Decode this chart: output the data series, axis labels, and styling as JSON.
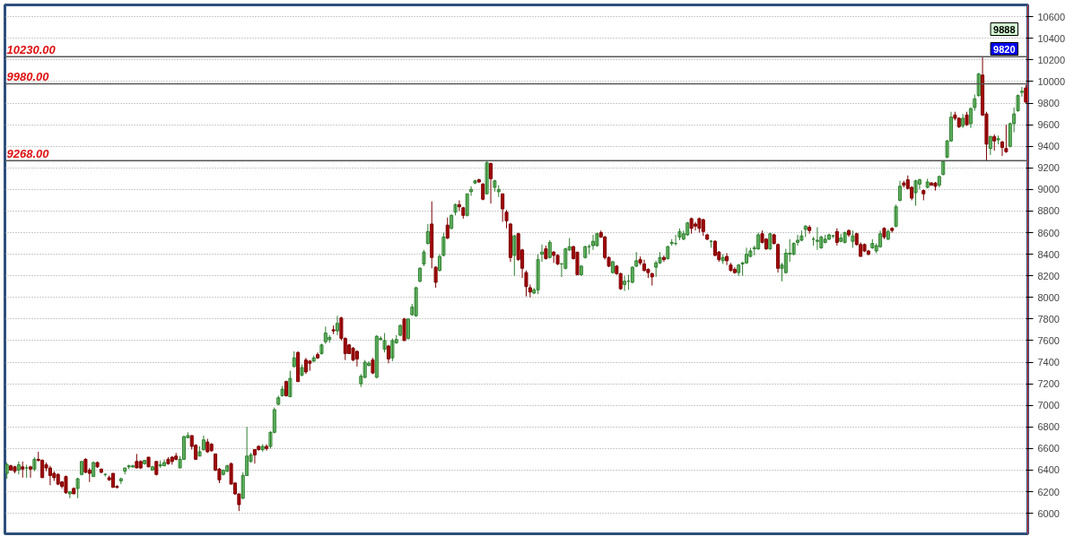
{
  "chart_data": {
    "type": "candlestick",
    "categories": [
      null,
      null,
      null,
      null,
      null,
      null,
      null,
      null,
      null,
      null,
      null,
      null,
      null,
      null,
      null,
      null,
      null,
      null,
      null,
      null,
      null,
      null,
      null,
      null,
      null,
      null,
      null,
      null,
      null,
      null,
      null,
      null,
      null,
      null,
      null,
      null,
      null,
      null,
      null,
      null,
      null,
      null,
      null,
      null,
      null,
      null,
      null,
      null,
      null,
      null,
      null,
      null,
      null,
      null,
      null,
      null,
      null,
      null,
      null,
      null,
      null,
      null,
      null,
      null,
      null,
      null,
      null,
      null,
      null,
      null,
      null,
      null,
      null,
      null,
      null,
      null,
      null,
      null,
      null,
      null,
      null,
      null,
      null,
      null,
      null,
      null,
      null,
      null,
      null,
      null,
      null,
      null,
      null,
      null,
      null,
      null,
      null,
      null,
      null,
      null,
      null,
      null,
      null,
      null,
      null,
      null,
      null,
      null,
      null,
      null,
      null,
      null,
      null,
      null,
      null,
      null,
      null,
      null,
      null,
      null,
      null,
      null,
      null,
      null,
      null,
      null,
      null,
      null,
      null,
      null,
      null,
      null,
      null,
      null,
      null,
      null,
      null,
      null,
      null,
      null,
      null,
      null,
      null,
      null,
      null,
      null,
      null,
      null,
      null,
      null,
      null,
      null,
      null,
      null,
      null,
      null,
      null,
      null,
      null,
      null,
      null,
      null,
      null,
      null,
      null,
      null,
      null,
      null,
      null,
      null,
      null,
      null,
      null,
      null,
      null,
      null,
      null,
      null,
      null,
      null,
      null,
      null,
      null,
      null,
      null,
      null,
      null,
      null,
      null,
      null,
      null,
      null,
      null,
      null,
      null,
      null,
      null,
      null,
      null,
      null,
      null,
      null,
      null,
      null,
      null,
      null,
      null,
      null,
      null,
      null,
      null,
      null,
      null,
      null,
      null,
      null,
      null,
      null,
      null,
      null,
      null,
      null,
      null,
      null,
      null,
      null,
      null,
      null,
      null,
      null,
      null,
      null,
      null,
      null,
      null,
      null,
      null,
      null,
      null,
      null,
      null,
      null,
      null,
      null,
      null,
      null,
      null,
      null,
      null,
      null,
      null,
      null,
      null,
      null,
      null,
      null,
      null,
      null,
      null,
      null
    ],
    "ohlc": [
      [
        6370,
        6470,
        6320,
        6450
      ],
      [
        6440,
        6450,
        6395,
        6400
      ],
      [
        6430,
        6440,
        6370,
        6390
      ],
      [
        6400,
        6480,
        6360,
        6450
      ],
      [
        6430,
        6480,
        6330,
        6410
      ],
      [
        6420,
        6450,
        6330,
        6420
      ],
      [
        6430,
        6440,
        6330,
        6410
      ],
      [
        6410,
        6520,
        6390,
        6500
      ],
      [
        6500,
        6570,
        6480,
        6490
      ],
      [
        6490,
        6500,
        6330,
        6330
      ],
      [
        6450,
        6470,
        6390,
        6420
      ],
      [
        6420,
        6440,
        6260,
        6350
      ],
      [
        6370,
        6390,
        6300,
        6330
      ],
      [
        6360,
        6370,
        6260,
        6270
      ],
      [
        6290,
        6300,
        6230,
        6250
      ],
      [
        6340,
        6350,
        6180,
        6190
      ],
      [
        6180,
        6200,
        6140,
        6200
      ],
      [
        6230,
        6240,
        6180,
        6180
      ],
      [
        6230,
        6330,
        6140,
        6320
      ],
      [
        6360,
        6480,
        6350,
        6480
      ],
      [
        6500,
        6510,
        6370,
        6380
      ],
      [
        6400,
        6420,
        6290,
        6370
      ],
      [
        6340,
        6480,
        6340,
        6470
      ],
      [
        6470,
        6480,
        6420,
        6430
      ],
      [
        6410,
        6410,
        6370,
        6380
      ],
      [
        6360,
        6370,
        6340,
        6360
      ],
      [
        6330,
        6350,
        6300,
        6310
      ],
      [
        6370,
        6370,
        6240,
        6240
      ],
      [
        6250,
        6260,
        6230,
        6240
      ],
      [
        6300,
        6330,
        6270,
        6320
      ],
      [
        6390,
        6420,
        6360,
        6420
      ],
      [
        6430,
        6450,
        6410,
        6440
      ],
      [
        6430,
        6450,
        6420,
        6440
      ],
      [
        6480,
        6550,
        6420,
        6420
      ],
      [
        6480,
        6490,
        6410,
        6420
      ],
      [
        6460,
        6490,
        6450,
        6490
      ],
      [
        6520,
        6520,
        6430,
        6430
      ],
      [
        6400,
        6440,
        6400,
        6430
      ],
      [
        6480,
        6480,
        6350,
        6360
      ],
      [
        6440,
        6490,
        6420,
        6450
      ],
      [
        6440,
        6500,
        6440,
        6470
      ],
      [
        6500,
        6520,
        6450,
        6460
      ],
      [
        6520,
        6530,
        6450,
        6480
      ],
      [
        6530,
        6560,
        6490,
        6500
      ],
      [
        6420,
        6530,
        6420,
        6500
      ],
      [
        6500,
        6720,
        6500,
        6710
      ],
      [
        6700,
        6750,
        6700,
        6720
      ],
      [
        6720,
        6720,
        6590,
        6620
      ],
      [
        6630,
        6640,
        6500,
        6500
      ],
      [
        6530,
        6620,
        6530,
        6570
      ],
      [
        6590,
        6720,
        6580,
        6680
      ],
      [
        6660,
        6690,
        6560,
        6570
      ],
      [
        6640,
        6650,
        6570,
        6580
      ],
      [
        6550,
        6550,
        6390,
        6400
      ],
      [
        6410,
        6420,
        6280,
        6310
      ],
      [
        6360,
        6400,
        6350,
        6400
      ],
      [
        6390,
        6450,
        6380,
        6440
      ],
      [
        6460,
        6470,
        6270,
        6270
      ],
      [
        6280,
        6290,
        6170,
        6180
      ],
      [
        6180,
        6180,
        6020,
        6080
      ],
      [
        6140,
        6380,
        6130,
        6350
      ],
      [
        6350,
        6800,
        6350,
        6530
      ],
      [
        6480,
        6560,
        6470,
        6540
      ],
      [
        6590,
        6590,
        6460,
        6540
      ],
      [
        6620,
        6630,
        6580,
        6590
      ],
      [
        6590,
        6640,
        6570,
        6620
      ],
      [
        6620,
        6640,
        6580,
        6600
      ],
      [
        6620,
        6760,
        6600,
        6750
      ],
      [
        6750,
        6980,
        6740,
        6960
      ],
      [
        7010,
        7090,
        7000,
        7070
      ],
      [
        7090,
        7180,
        7080,
        7150
      ],
      [
        7220,
        7230,
        7080,
        7090
      ],
      [
        7080,
        7320,
        7080,
        7250
      ],
      [
        7360,
        7500,
        7350,
        7440
      ],
      [
        7490,
        7500,
        7220,
        7220
      ],
      [
        7280,
        7380,
        7270,
        7350
      ],
      [
        7420,
        7440,
        7290,
        7310
      ],
      [
        7410,
        7420,
        7320,
        7390
      ],
      [
        7410,
        7460,
        7400,
        7440
      ],
      [
        7470,
        7490,
        7430,
        7440
      ],
      [
        7480,
        7570,
        7470,
        7560
      ],
      [
        7590,
        7730,
        7570,
        7670
      ],
      [
        7610,
        7650,
        7580,
        7630
      ],
      [
        7700,
        7740,
        7660,
        7690
      ],
      [
        7690,
        7830,
        7650,
        7760
      ],
      [
        7810,
        7820,
        7600,
        7620
      ],
      [
        7620,
        7630,
        7420,
        7480
      ],
      [
        7560,
        7570,
        7480,
        7480
      ],
      [
        7530,
        7540,
        7410,
        7420
      ],
      [
        7500,
        7510,
        7360,
        7430
      ],
      [
        7200,
        7290,
        7170,
        7270
      ],
      [
        7260,
        7420,
        7250,
        7400
      ],
      [
        7370,
        7410,
        7360,
        7390
      ],
      [
        7420,
        7440,
        7290,
        7300
      ],
      [
        7260,
        7650,
        7250,
        7640
      ],
      [
        7610,
        7640,
        7600,
        7620
      ],
      [
        7520,
        7670,
        7490,
        7600
      ],
      [
        7550,
        7560,
        7390,
        7430
      ],
      [
        7440,
        7620,
        7410,
        7600
      ],
      [
        7580,
        7650,
        7570,
        7610
      ],
      [
        7650,
        7750,
        7640,
        7740
      ],
      [
        7800,
        7810,
        7600,
        7600
      ],
      [
        7620,
        7800,
        7610,
        7800
      ],
      [
        7840,
        7940,
        7830,
        7910
      ],
      [
        7830,
        8100,
        7820,
        8090
      ],
      [
        8150,
        8280,
        8140,
        8270
      ],
      [
        8310,
        8440,
        8290,
        8420
      ],
      [
        8500,
        8680,
        8490,
        8610
      ],
      [
        8680,
        8890,
        8270,
        8370
      ],
      [
        8280,
        8290,
        8090,
        8140
      ],
      [
        8250,
        8400,
        8240,
        8380
      ],
      [
        8390,
        8600,
        8380,
        8560
      ],
      [
        8670,
        8740,
        8540,
        8550
      ],
      [
        8640,
        8770,
        8630,
        8760
      ],
      [
        8790,
        8870,
        8760,
        8860
      ],
      [
        8860,
        8900,
        8800,
        8840
      ],
      [
        8830,
        8840,
        8730,
        8760
      ],
      [
        8760,
        8960,
        8750,
        8960
      ],
      [
        8980,
        9030,
        8940,
        9000
      ],
      [
        9060,
        9090,
        9050,
        9080
      ],
      [
        9090,
        9100,
        9060,
        9070
      ],
      [
        9050,
        9060,
        8900,
        8910
      ],
      [
        8960,
        9260,
        8960,
        9250
      ],
      [
        9240,
        9250,
        8870,
        9100
      ],
      [
        9020,
        9090,
        8980,
        9080
      ],
      [
        8980,
        9040,
        8930,
        9000
      ],
      [
        8960,
        8960,
        8700,
        8820
      ],
      [
        8790,
        8810,
        8640,
        8710
      ],
      [
        8680,
        8690,
        8330,
        8370
      ],
      [
        8390,
        8580,
        8200,
        8570
      ],
      [
        8590,
        8600,
        8340,
        8350
      ],
      [
        8440,
        8450,
        8180,
        8270
      ],
      [
        8230,
        8250,
        8010,
        8100
      ],
      [
        8090,
        8120,
        8000,
        8050
      ],
      [
        8040,
        8090,
        8030,
        8070
      ],
      [
        8070,
        8400,
        8030,
        8350
      ],
      [
        8400,
        8490,
        8330,
        8420
      ],
      [
        8450,
        8480,
        8350,
        8360
      ],
      [
        8370,
        8530,
        8360,
        8510
      ],
      [
        8420,
        8430,
        8320,
        8390
      ],
      [
        8390,
        8400,
        8300,
        8310
      ],
      [
        8310,
        8320,
        8190,
        8310
      ],
      [
        8270,
        8460,
        8260,
        8450
      ],
      [
        8440,
        8550,
        8430,
        8470
      ],
      [
        8470,
        8480,
        8350,
        8360
      ],
      [
        8420,
        8420,
        8210,
        8210
      ],
      [
        8210,
        8300,
        8200,
        8290
      ],
      [
        8370,
        8480,
        8360,
        8470
      ],
      [
        8470,
        8490,
        8400,
        8470
      ],
      [
        8480,
        8580,
        8440,
        8520
      ],
      [
        8480,
        8600,
        8470,
        8590
      ],
      [
        8600,
        8620,
        8550,
        8560
      ],
      [
        8560,
        8570,
        8350,
        8370
      ],
      [
        8370,
        8380,
        8280,
        8290
      ],
      [
        8230,
        8340,
        8220,
        8330
      ],
      [
        8290,
        8300,
        8210,
        8220
      ],
      [
        8220,
        8230,
        8070,
        8080
      ],
      [
        8120,
        8200,
        8060,
        8150
      ],
      [
        8150,
        8210,
        8070,
        8150
      ],
      [
        8140,
        8290,
        8130,
        8280
      ],
      [
        8290,
        8420,
        8280,
        8340
      ],
      [
        8350,
        8380,
        8300,
        8320
      ],
      [
        8310,
        8350,
        8240,
        8250
      ],
      [
        8260,
        8270,
        8180,
        8230
      ],
      [
        8220,
        8230,
        8110,
        8190
      ],
      [
        8280,
        8340,
        8190,
        8320
      ],
      [
        8320,
        8420,
        8310,
        8370
      ],
      [
        8370,
        8390,
        8330,
        8350
      ],
      [
        8360,
        8480,
        8350,
        8470
      ],
      [
        8500,
        8540,
        8480,
        8510
      ],
      [
        8500,
        8580,
        8480,
        8500
      ],
      [
        8560,
        8640,
        8530,
        8610
      ],
      [
        8540,
        8620,
        8530,
        8590
      ],
      [
        8580,
        8700,
        8570,
        8690
      ],
      [
        8730,
        8740,
        8590,
        8640
      ],
      [
        8680,
        8700,
        8620,
        8660
      ],
      [
        8730,
        8740,
        8600,
        8640
      ],
      [
        8720,
        8730,
        8570,
        8610
      ],
      [
        8580,
        8590,
        8530,
        8540
      ],
      [
        8520,
        8530,
        8460,
        8520
      ],
      [
        8520,
        8530,
        8380,
        8390
      ],
      [
        8420,
        8430,
        8330,
        8350
      ],
      [
        8340,
        8400,
        8310,
        8370
      ],
      [
        8380,
        8410,
        8300,
        8340
      ],
      [
        8300,
        8320,
        8240,
        8250
      ],
      [
        8260,
        8280,
        8220,
        8230
      ],
      [
        8230,
        8310,
        8200,
        8300
      ],
      [
        8310,
        8330,
        8200,
        8320
      ],
      [
        8320,
        8460,
        8310,
        8400
      ],
      [
        8380,
        8460,
        8370,
        8430
      ],
      [
        8450,
        8480,
        8390,
        8460
      ],
      [
        8450,
        8600,
        8440,
        8580
      ],
      [
        8590,
        8620,
        8500,
        8510
      ],
      [
        8540,
        8550,
        8440,
        8450
      ],
      [
        8450,
        8600,
        8440,
        8590
      ],
      [
        8580,
        8590,
        8490,
        8500
      ],
      [
        8490,
        8500,
        8230,
        8270
      ],
      [
        8270,
        8320,
        8150,
        8300
      ],
      [
        8230,
        8450,
        8220,
        8410
      ],
      [
        8400,
        8540,
        8330,
        8410
      ],
      [
        8400,
        8510,
        8390,
        8500
      ],
      [
        8510,
        8580,
        8480,
        8530
      ],
      [
        8530,
        8620,
        8520,
        8570
      ],
      [
        8630,
        8670,
        8560,
        8660
      ],
      [
        8650,
        8670,
        8590,
        8620
      ],
      [
        8540,
        8560,
        8480,
        8540
      ],
      [
        8520,
        8650,
        8440,
        8530
      ],
      [
        8460,
        8570,
        8450,
        8560
      ],
      [
        8510,
        8580,
        8500,
        8540
      ],
      [
        8540,
        8590,
        8530,
        8580
      ],
      [
        8570,
        8580,
        8550,
        8570
      ],
      [
        8610,
        8640,
        8480,
        8510
      ],
      [
        8520,
        8590,
        8510,
        8550
      ],
      [
        8510,
        8610,
        8500,
        8600
      ],
      [
        8620,
        8630,
        8560,
        8580
      ],
      [
        8520,
        8620,
        8460,
        8570
      ],
      [
        8590,
        8600,
        8480,
        8490
      ],
      [
        8490,
        8510,
        8380,
        8380
      ],
      [
        8490,
        8500,
        8420,
        8430
      ],
      [
        8430,
        8440,
        8390,
        8400
      ],
      [
        8460,
        8540,
        8450,
        8500
      ],
      [
        8430,
        8500,
        8410,
        8480
      ],
      [
        8470,
        8620,
        8460,
        8590
      ],
      [
        8640,
        8650,
        8540,
        8560
      ],
      [
        8540,
        8630,
        8530,
        8610
      ],
      [
        8640,
        8650,
        8600,
        8620
      ],
      [
        8660,
        8860,
        8650,
        8840
      ],
      [
        8900,
        9080,
        8890,
        9030
      ],
      [
        9060,
        9080,
        9020,
        9040
      ],
      [
        9090,
        9130,
        9000,
        9010
      ],
      [
        9020,
        9030,
        8900,
        8920
      ],
      [
        8970,
        9090,
        8850,
        9080
      ],
      [
        9050,
        9100,
        9000,
        9090
      ],
      [
        8990,
        9000,
        8900,
        8960
      ],
      [
        9020,
        9100,
        9010,
        9070
      ],
      [
        9060,
        9070,
        9040,
        9040
      ],
      [
        9060,
        9070,
        8990,
        9030
      ],
      [
        9040,
        9130,
        9020,
        9120
      ],
      [
        9140,
        9270,
        9130,
        9260
      ],
      [
        9300,
        9460,
        9290,
        9450
      ],
      [
        9450,
        9720,
        9440,
        9670
      ],
      [
        9690,
        9720,
        9640,
        9660
      ],
      [
        9660,
        9670,
        9570,
        9580
      ],
      [
        9590,
        9700,
        9570,
        9660
      ],
      [
        9690,
        9720,
        9590,
        9600
      ],
      [
        9610,
        9760,
        9570,
        9750
      ],
      [
        9760,
        9880,
        9730,
        9840
      ],
      [
        9870,
        10080,
        9860,
        10070
      ],
      [
        10060,
        10230,
        9680,
        9690
      ],
      [
        9700,
        9720,
        9268,
        9420
      ],
      [
        9380,
        9500,
        9320,
        9490
      ],
      [
        9490,
        9510,
        9360,
        9450
      ],
      [
        9460,
        9500,
        9420,
        9470
      ],
      [
        9440,
        9450,
        9310,
        9390
      ],
      [
        9380,
        9600,
        9340,
        9350
      ],
      [
        9400,
        9620,
        9390,
        9610
      ],
      [
        9610,
        9760,
        9530,
        9700
      ],
      [
        9730,
        9880,
        9720,
        9870
      ],
      [
        9900,
        9950,
        9860,
        9910
      ],
      [
        9940,
        9970,
        9800,
        9810
      ]
    ],
    "ylim": [
      5810,
      10710
    ],
    "yticks": [
      6000,
      6200,
      6400,
      6600,
      6800,
      7000,
      7200,
      7400,
      7600,
      7800,
      8000,
      8200,
      8400,
      8600,
      8800,
      9000,
      9200,
      9400,
      9600,
      9800,
      10000,
      10200,
      10400,
      10600
    ],
    "ref_lines": [
      {
        "axis": "y",
        "value": 10230,
        "label": "10230.00",
        "color": "#555555"
      },
      {
        "axis": "y",
        "value": 9980,
        "label": "9980.00",
        "color": "#555555"
      },
      {
        "axis": "y",
        "value": 9268,
        "label": "9268.00",
        "color": "#555555"
      }
    ],
    "annotations": [
      "9888",
      "9820"
    ],
    "grid": "y",
    "tick_labels": "y"
  }
}
